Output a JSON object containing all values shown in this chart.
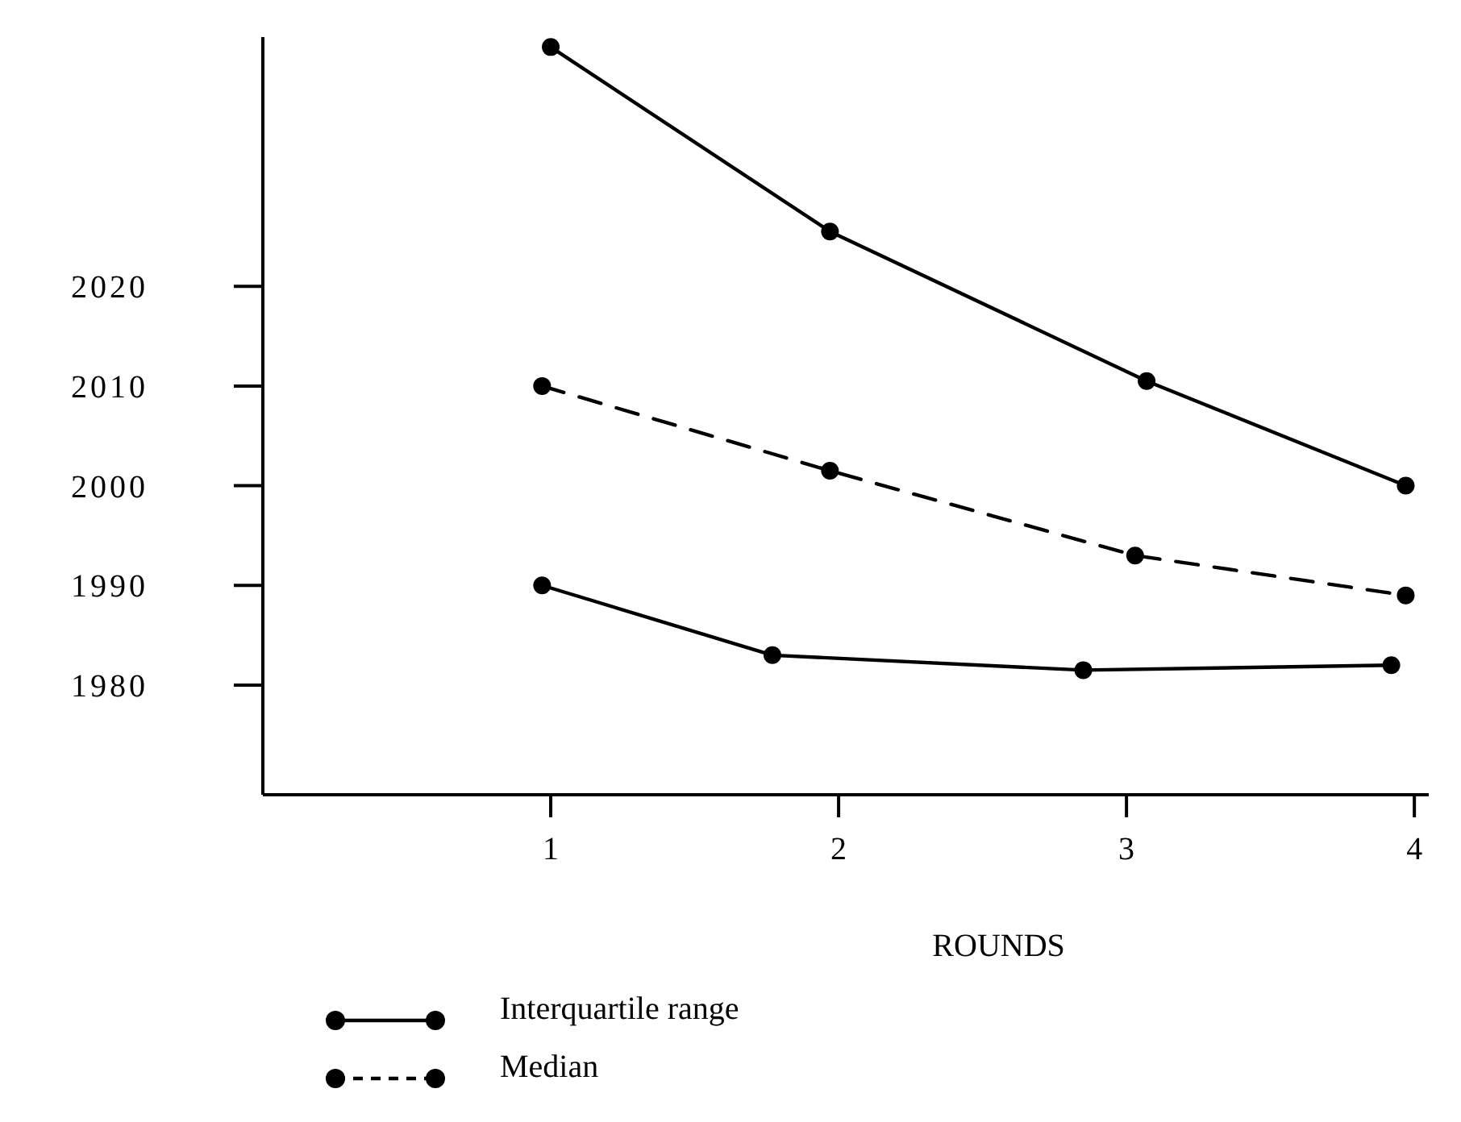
{
  "chart_data": {
    "type": "line",
    "xlabel": "ROUNDS",
    "xlim": [
      0,
      4.05
    ],
    "xticks": [
      1,
      2,
      3,
      4
    ],
    "ylim": [
      1969,
      2045
    ],
    "yticks": [
      1980,
      1990,
      2000,
      2010,
      2020
    ],
    "grid": false,
    "legend": "bottom",
    "marker": "circle",
    "series": [
      {
        "name": "Interquartile range",
        "color": "#000000",
        "line_style": "solid",
        "x": [
          1,
          1.97,
          3.07,
          3.97
        ],
        "values": [
          2044,
          2025.5,
          2010.5,
          2000
        ]
      },
      {
        "name": "Median",
        "color": "#000000",
        "line_style": "dashed",
        "x": [
          0.97,
          1.97,
          3.03,
          3.97
        ],
        "values": [
          2010,
          2001.5,
          1993,
          1989
        ]
      },
      {
        "color": "#000000",
        "line_style": "solid",
        "x": [
          0.97,
          1.77,
          2.85,
          3.92
        ],
        "values": [
          1990,
          1983,
          1981.5,
          1982
        ]
      }
    ]
  }
}
